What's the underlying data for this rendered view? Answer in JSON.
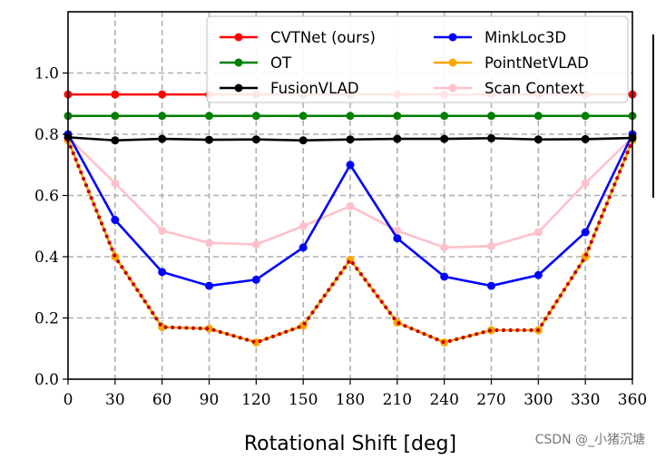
{
  "chart_data": {
    "type": "line",
    "xlabel": "Rotational Shift [deg]",
    "ylabel": "",
    "x": [
      0,
      30,
      60,
      90,
      120,
      150,
      180,
      210,
      240,
      270,
      300,
      330,
      360
    ],
    "xlim": [
      0,
      360
    ],
    "ylim": [
      0,
      1.2
    ],
    "yticks": [
      0.0,
      0.2,
      0.4,
      0.6,
      0.8,
      1.0
    ],
    "xticks": [
      0,
      30,
      60,
      90,
      120,
      150,
      180,
      210,
      240,
      270,
      300,
      330,
      360
    ],
    "grid": true,
    "legend_position": "top-right",
    "series": [
      {
        "name": "CVTNet (ours)",
        "color": "#ff0000",
        "values": [
          0.93,
          0.93,
          0.93,
          0.93,
          0.93,
          0.93,
          0.93,
          0.93,
          0.93,
          0.93,
          0.93,
          0.93,
          0.93
        ]
      },
      {
        "name": "OT",
        "color": "#008000",
        "values": [
          0.86,
          0.86,
          0.86,
          0.86,
          0.86,
          0.86,
          0.86,
          0.86,
          0.86,
          0.86,
          0.86,
          0.86,
          0.86
        ]
      },
      {
        "name": "FusionVLAD",
        "color": "#000000",
        "values": [
          0.79,
          0.78,
          0.785,
          0.782,
          0.783,
          0.78,
          0.783,
          0.785,
          0.785,
          0.787,
          0.783,
          0.784,
          0.788
        ]
      },
      {
        "name": "MinkLoc3D",
        "color": "#0000ff",
        "values": [
          0.8,
          0.52,
          0.35,
          0.305,
          0.325,
          0.43,
          0.7,
          0.46,
          0.335,
          0.305,
          0.34,
          0.48,
          0.8
        ]
      },
      {
        "name": "PointNetVLAD",
        "color": "#ffa500",
        "values": [
          0.78,
          0.4,
          0.17,
          0.165,
          0.12,
          0.175,
          0.39,
          0.185,
          0.12,
          0.16,
          0.16,
          0.4,
          0.78
        ]
      },
      {
        "name": "Scan Context",
        "color": "#ffc0cb",
        "values": [
          0.79,
          0.64,
          0.485,
          0.445,
          0.44,
          0.5,
          0.565,
          0.485,
          0.43,
          0.435,
          0.48,
          0.64,
          0.79
        ]
      }
    ],
    "dotted_overlay": {
      "color": "#c00000",
      "values": [
        0.78,
        0.4,
        0.17,
        0.165,
        0.12,
        0.175,
        0.39,
        0.185,
        0.12,
        0.16,
        0.16,
        0.4,
        0.78
      ]
    }
  },
  "watermark": "CSDN @_小猪沉塘"
}
